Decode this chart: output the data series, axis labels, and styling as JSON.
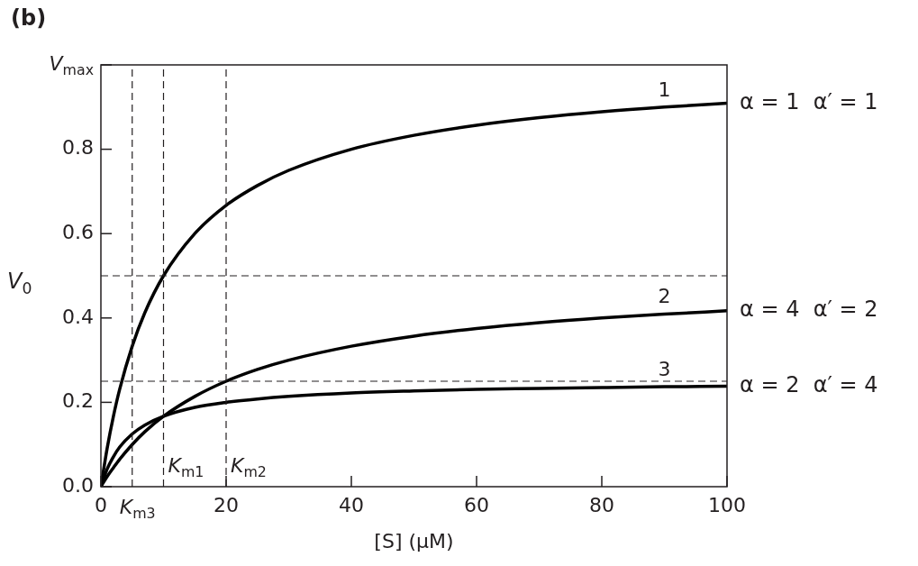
{
  "chart_data": {
    "type": "line",
    "title": "(b)",
    "xlabel": "[S] (μM)",
    "ylabel": "V$_{0}$",
    "x": [
      0,
      1,
      2,
      3,
      5,
      7,
      10,
      15,
      20,
      25,
      30,
      40,
      50,
      60,
      70,
      80,
      90,
      100
    ],
    "series": [
      {
        "name": "1",
        "color": "#000000",
        "values": [
          0,
          0.091,
          0.167,
          0.231,
          0.333,
          0.412,
          0.5,
          0.6,
          0.667,
          0.714,
          0.75,
          0.8,
          0.833,
          0.857,
          0.875,
          0.889,
          0.9,
          0.909
        ]
      },
      {
        "name": "2",
        "color": "#000000",
        "values": [
          0,
          0.024,
          0.045,
          0.065,
          0.1,
          0.13,
          0.167,
          0.214,
          0.25,
          0.278,
          0.3,
          0.333,
          0.357,
          0.375,
          0.389,
          0.4,
          0.409,
          0.417
        ]
      },
      {
        "name": "3",
        "color": "#000000",
        "values": [
          0,
          0.042,
          0.071,
          0.094,
          0.125,
          0.146,
          0.167,
          0.188,
          0.2,
          0.208,
          0.214,
          0.222,
          0.227,
          0.231,
          0.233,
          0.235,
          0.237,
          0.238
        ]
      }
    ],
    "xlim": [
      0,
      100
    ],
    "xticks": [
      0,
      20,
      40,
      60,
      80,
      100
    ],
    "ylim": [
      0,
      1
    ],
    "yticks": [
      {
        "value": 0,
        "label": "0.0"
      },
      {
        "value": 0.2,
        "label": "0.2"
      },
      {
        "value": 0.4,
        "label": "0.4"
      },
      {
        "value": 0.6,
        "label": "0.6"
      },
      {
        "value": 0.8,
        "label": "0.8"
      },
      {
        "value": 1,
        "label": "V$_{max}$"
      }
    ],
    "ref_lines": [
      {
        "axis": "y",
        "value": 0.5,
        "label": null,
        "line_style": "dashed"
      },
      {
        "axis": "y",
        "value": 0.25,
        "label": null,
        "line_style": "dashed"
      },
      {
        "axis": "x",
        "value": 5,
        "label": "K$_{m3}$",
        "line_style": "dashed"
      },
      {
        "axis": "x",
        "value": 10,
        "label": "K$_{m1}$",
        "line_style": "dashed"
      },
      {
        "axis": "x",
        "value": 20,
        "label": "K$_{m2}$",
        "line_style": "dashed"
      }
    ],
    "annotations": [
      "α = 1  α′ = 1",
      "α = 4  α′ = 2",
      "α = 2  α′ = 4"
    ],
    "grid": false,
    "legend": false,
    "marker": "none",
    "line_style": "solid",
    "tick_labels": "xy"
  }
}
